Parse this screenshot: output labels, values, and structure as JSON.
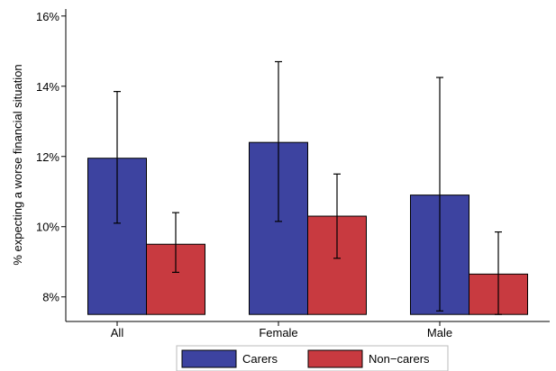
{
  "chart_data": {
    "type": "bar",
    "title": "",
    "xlabel": "",
    "ylabel": "% expecting a worse financial situation",
    "categories": [
      "All",
      "Female",
      "Male"
    ],
    "series": [
      {
        "name": "Carers",
        "color": "#3d43a0",
        "values": [
          11.95,
          12.4,
          10.9
        ],
        "ci_low": [
          10.1,
          10.15,
          7.6
        ],
        "ci_high": [
          13.85,
          14.7,
          14.25
        ]
      },
      {
        "name": "Non−carers",
        "color": "#c83a40",
        "values": [
          9.5,
          10.3,
          8.65
        ],
        "ci_low": [
          8.7,
          9.1,
          7.5
        ],
        "ci_high": [
          10.4,
          11.5,
          9.85
        ]
      }
    ],
    "baseline": 7.5,
    "ylim": [
      7.3,
      16.2
    ],
    "yticks": [
      8,
      10,
      12,
      14,
      16
    ],
    "ytick_labels": [
      "8%",
      "10%",
      "12%",
      "14%",
      "16%"
    ],
    "grid": false,
    "legend": "bottom",
    "error_bars": true
  }
}
